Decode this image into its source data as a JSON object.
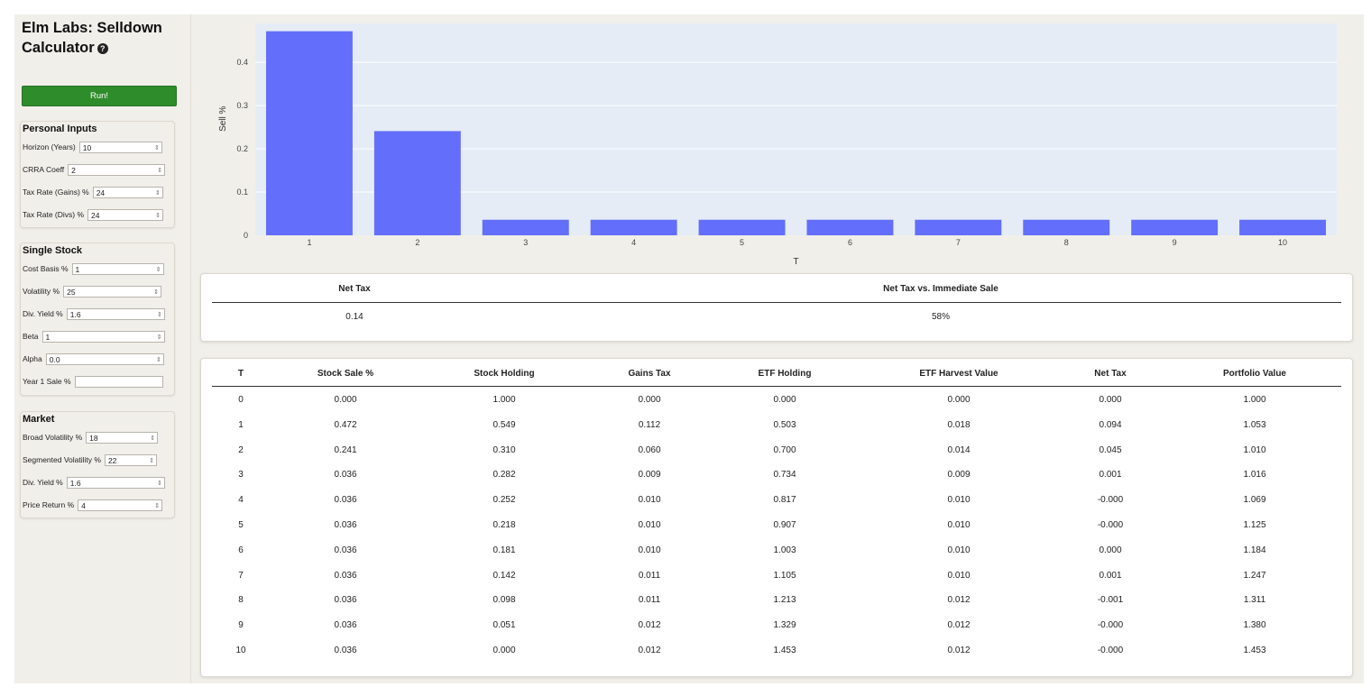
{
  "app": {
    "title_line1": "Elm Labs: Selldown",
    "title_line2": "Calculator",
    "run_label": "Run!"
  },
  "personal": {
    "title": "Personal Inputs",
    "fields": [
      {
        "label": "Horizon (Years)",
        "value": "10"
      },
      {
        "label": "CRRA Coeff",
        "value": "2"
      },
      {
        "label": "Tax Rate (Gains) %",
        "value": "24"
      },
      {
        "label": "Tax Rate (Divs) %",
        "value": "24"
      }
    ]
  },
  "single_stock": {
    "title": "Single Stock",
    "fields": [
      {
        "label": "Cost Basis %",
        "value": "1"
      },
      {
        "label": "Volatility %",
        "value": "25"
      },
      {
        "label": "Div. Yield %",
        "value": "1.6"
      },
      {
        "label": "Beta",
        "value": "1"
      },
      {
        "label": "Alpha",
        "value": "0.0"
      },
      {
        "label": "Year 1 Sale %",
        "value": ""
      }
    ]
  },
  "market": {
    "title": "Market",
    "fields": [
      {
        "label": "Broad Volatility %",
        "value": "18"
      },
      {
        "label": "Segmented Volatility %",
        "value": "22"
      },
      {
        "label": "Div. Yield %",
        "value": "1.6"
      },
      {
        "label": "Price Return %",
        "value": "4"
      }
    ]
  },
  "chart_data": {
    "type": "bar",
    "categories": [
      "1",
      "2",
      "3",
      "4",
      "5",
      "6",
      "7",
      "8",
      "9",
      "10"
    ],
    "values": [
      0.472,
      0.241,
      0.036,
      0.036,
      0.036,
      0.036,
      0.036,
      0.036,
      0.036,
      0.036
    ],
    "xlabel": "T",
    "ylabel": "Sell %",
    "ylim": [
      0,
      0.49
    ],
    "yticks": [
      "0",
      "0.1",
      "0.2",
      "0.3",
      "0.4"
    ],
    "grid": true,
    "bar_color": "#636efa",
    "plot_bg": "#e5ecf6"
  },
  "summary": {
    "headers": [
      "Net Tax",
      "Net Tax vs. Immediate Sale"
    ],
    "values": [
      "0.14",
      "58%"
    ]
  },
  "table": {
    "headers": [
      "T",
      "Stock Sale %",
      "Stock Holding",
      "Gains Tax",
      "ETF Holding",
      "ETF Harvest Value",
      "Net Tax",
      "Portfolio Value"
    ],
    "rows": [
      [
        "0",
        "0.000",
        "1.000",
        "0.000",
        "0.000",
        "0.000",
        "0.000",
        "1.000"
      ],
      [
        "1",
        "0.472",
        "0.549",
        "0.112",
        "0.503",
        "0.018",
        "0.094",
        "1.053"
      ],
      [
        "2",
        "0.241",
        "0.310",
        "0.060",
        "0.700",
        "0.014",
        "0.045",
        "1.010"
      ],
      [
        "3",
        "0.036",
        "0.282",
        "0.009",
        "0.734",
        "0.009",
        "0.001",
        "1.016"
      ],
      [
        "4",
        "0.036",
        "0.252",
        "0.010",
        "0.817",
        "0.010",
        "-0.000",
        "1.069"
      ],
      [
        "5",
        "0.036",
        "0.218",
        "0.010",
        "0.907",
        "0.010",
        "-0.000",
        "1.125"
      ],
      [
        "6",
        "0.036",
        "0.181",
        "0.010",
        "1.003",
        "0.010",
        "0.000",
        "1.184"
      ],
      [
        "7",
        "0.036",
        "0.142",
        "0.011",
        "1.105",
        "0.010",
        "0.001",
        "1.247"
      ],
      [
        "8",
        "0.036",
        "0.098",
        "0.011",
        "1.213",
        "0.012",
        "-0.001",
        "1.311"
      ],
      [
        "9",
        "0.036",
        "0.051",
        "0.012",
        "1.329",
        "0.012",
        "-0.000",
        "1.380"
      ],
      [
        "10",
        "0.036",
        "0.000",
        "0.012",
        "1.453",
        "0.012",
        "-0.000",
        "1.453"
      ]
    ]
  },
  "colors": {
    "run_button": "#2f8c2b",
    "sidebar_bg": "#f1efea"
  }
}
